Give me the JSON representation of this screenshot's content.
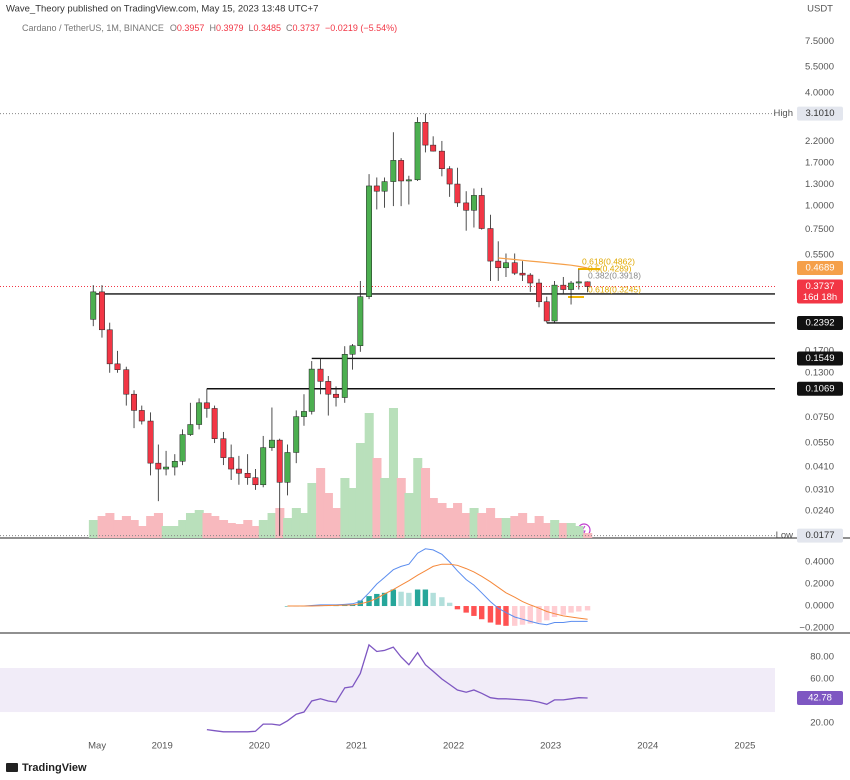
{
  "header": {
    "publisher": "Wave_Theory published on TradingView.com, May 15, 2023 13:48 UTC+7",
    "unit": "USDT"
  },
  "footer": {
    "brand": "TradingView"
  },
  "chart_data": [
    {
      "type": "candlestick",
      "title": "Cardano / TetherUS, 1M, BINANCE",
      "ohlc_labels": [
        "O",
        "H",
        "L",
        "C"
      ],
      "change": "−0.0219 (−5.54%)",
      "log_scale": true,
      "ylim": [
        0.0172,
        10
      ],
      "xlim": [
        2017.33,
        2025.31
      ],
      "yticks": [
        {
          "value": 7.5,
          "label": "7.5000"
        },
        {
          "value": 5.5,
          "label": "5.5000"
        },
        {
          "value": 4,
          "label": "4.0000"
        },
        {
          "value": 2.2,
          "label": "2.2000"
        },
        {
          "value": 1.7,
          "label": "1.7000"
        },
        {
          "value": 1.3,
          "label": "1.3000"
        },
        {
          "value": 1,
          "label": "1.0000"
        },
        {
          "value": 0.75,
          "label": "0.7500"
        },
        {
          "value": 0.55,
          "label": "0.5500"
        },
        {
          "value": 0.17,
          "label": "0.1700"
        },
        {
          "value": 0.13,
          "label": "0.1300"
        },
        {
          "value": 0.075,
          "label": "0.0750"
        },
        {
          "value": 0.055,
          "label": "0.0550"
        },
        {
          "value": 0.041,
          "label": "0.0410"
        },
        {
          "value": 0.031,
          "label": "0.0310"
        },
        {
          "value": 0.024,
          "label": "0.0240"
        }
      ],
      "xticks": [
        {
          "value": 2018.33,
          "label": "May"
        },
        2019,
        2020,
        2021,
        2022,
        2023,
        2024,
        2025
      ],
      "up_color": "#4caf50",
      "down_color": "#f23645",
      "x": [
        2018.29,
        2018.38,
        2018.46,
        2018.54,
        2018.63,
        2018.71,
        2018.79,
        2018.88,
        2018.96,
        2019.04,
        2019.13,
        2019.21,
        2019.29,
        2019.38,
        2019.46,
        2019.54,
        2019.63,
        2019.71,
        2019.79,
        2019.88,
        2019.96,
        2020.04,
        2020.13,
        2020.21,
        2020.29,
        2020.38,
        2020.46,
        2020.54,
        2020.63,
        2020.71,
        2020.79,
        2020.88,
        2020.96,
        2021.04,
        2021.13,
        2021.21,
        2021.29,
        2021.38,
        2021.46,
        2021.54,
        2021.63,
        2021.71,
        2021.79,
        2021.88,
        2021.96,
        2022.04,
        2022.13,
        2022.21,
        2022.29,
        2022.38,
        2022.46,
        2022.54,
        2022.63,
        2022.71,
        2022.79,
        2022.88,
        2022.96,
        2023.04,
        2023.13,
        2023.21,
        2023.29,
        2023.38
      ],
      "open": [
        0.25,
        0.35,
        0.22,
        0.145,
        0.135,
        0.1,
        0.082,
        0.072,
        0.043,
        0.04,
        0.041,
        0.044,
        0.061,
        0.069,
        0.09,
        0.084,
        0.058,
        0.046,
        0.04,
        0.038,
        0.036,
        0.033,
        0.052,
        0.057,
        0.034,
        0.049,
        0.076,
        0.081,
        0.136,
        0.117,
        0.1,
        0.096,
        0.163,
        0.181,
        0.33,
        1.28,
        1.2,
        1.35,
        1.75,
        1.36,
        1.38,
        2.79,
        2.11,
        1.96,
        1.58,
        1.31,
        1.04,
        0.95,
        1.14,
        0.76,
        0.51,
        0.47,
        0.5,
        0.44,
        0.43,
        0.39,
        0.31,
        0.245,
        0.38,
        0.36,
        0.39,
        0.3957
      ],
      "high": [
        0.38,
        0.38,
        0.24,
        0.17,
        0.14,
        0.105,
        0.087,
        0.08,
        0.054,
        0.05,
        0.048,
        0.065,
        0.09,
        0.095,
        0.107,
        0.087,
        0.063,
        0.054,
        0.047,
        0.048,
        0.04,
        0.06,
        0.085,
        0.058,
        0.054,
        0.082,
        0.1,
        0.15,
        0.155,
        0.125,
        0.11,
        0.18,
        0.185,
        0.4,
        1.48,
        1.42,
        1.42,
        2.47,
        1.8,
        1.45,
        2.97,
        3.101,
        2.35,
        2.22,
        1.63,
        1.6,
        1.2,
        1.24,
        1.25,
        0.9,
        0.65,
        0.56,
        0.56,
        0.51,
        0.44,
        0.41,
        0.33,
        0.4,
        0.42,
        0.4,
        0.46,
        0.3979
      ],
      "low": [
        0.23,
        0.2,
        0.13,
        0.13,
        0.087,
        0.066,
        0.069,
        0.037,
        0.027,
        0.037,
        0.037,
        0.042,
        0.06,
        0.065,
        0.075,
        0.055,
        0.042,
        0.035,
        0.033,
        0.033,
        0.031,
        0.032,
        0.05,
        0.0177,
        0.029,
        0.043,
        0.068,
        0.078,
        0.1,
        0.077,
        0.086,
        0.09,
        0.135,
        0.168,
        0.32,
        0.96,
        0.98,
        1.0,
        1.0,
        1.02,
        1.36,
        1.93,
        1.95,
        1.44,
        1.12,
        0.99,
        0.74,
        0.77,
        0.75,
        0.4,
        0.4,
        0.42,
        0.43,
        0.4,
        0.35,
        0.29,
        0.24,
        0.24,
        0.34,
        0.3,
        0.36,
        0.3485
      ],
      "close": [
        0.35,
        0.22,
        0.145,
        0.135,
        0.1,
        0.082,
        0.072,
        0.043,
        0.04,
        0.041,
        0.044,
        0.061,
        0.069,
        0.09,
        0.084,
        0.058,
        0.046,
        0.04,
        0.038,
        0.036,
        0.033,
        0.052,
        0.057,
        0.034,
        0.049,
        0.076,
        0.081,
        0.136,
        0.117,
        0.1,
        0.096,
        0.163,
        0.181,
        0.33,
        1.28,
        1.2,
        1.35,
        1.75,
        1.36,
        1.38,
        2.79,
        2.11,
        1.96,
        1.58,
        1.31,
        1.04,
        0.95,
        1.14,
        0.76,
        0.51,
        0.47,
        0.5,
        0.44,
        0.43,
        0.39,
        0.31,
        0.245,
        0.38,
        0.36,
        0.39,
        0.3957,
        0.3737
      ],
      "volume": {
        "ylim": [
          0,
          140
        ],
        "up_color": "#b9e0bb",
        "down_color": "#f8b9be",
        "values": [
          18,
          22,
          25,
          18,
          22,
          18,
          12,
          22,
          25,
          12,
          12,
          18,
          25,
          28,
          25,
          22,
          18,
          15,
          14,
          18,
          12,
          18,
          25,
          30,
          20,
          30,
          25,
          55,
          70,
          45,
          30,
          60,
          50,
          95,
          125,
          80,
          60,
          130,
          60,
          45,
          80,
          70,
          40,
          35,
          30,
          35,
          25,
          30,
          25,
          30,
          20,
          20,
          22,
          25,
          15,
          22,
          15,
          18,
          15,
          15,
          12,
          5
        ]
      },
      "levels": [
        {
          "value": 0.3414,
          "from": 2018.29
        },
        {
          "value": 0.2392,
          "from": 2022.96
        },
        {
          "value": 0.1549,
          "from": 2020.54
        },
        {
          "value": 0.1069,
          "from": 2019.46
        }
      ],
      "high_mark": {
        "label": "High",
        "price": {
          "value": 3.101,
          "label": "3.1010"
        }
      },
      "low_mark": {
        "label": "Low",
        "price": 0.0177
      },
      "countdown": "16d 18h",
      "ema": {
        "color": "#f5a04a",
        "x": [
          2022.46,
          2022.54,
          2022.63,
          2022.71,
          2022.79,
          2022.88,
          2022.96,
          2023.04,
          2023.13,
          2023.21,
          2023.29,
          2023.38
        ],
        "values": [
          0.53,
          0.525,
          0.52,
          0.515,
          0.51,
          0.505,
          0.5,
          0.495,
          0.49,
          0.485,
          0.478,
          0.4689
        ]
      },
      "fib_labels": [
        "0.618(0.4862)",
        "0.5(0.4289)",
        "0.382(0.3918)",
        "0.618(0.3245)"
      ]
    },
    {
      "type": "macd",
      "ylim": [
        -0.236,
        0.6
      ],
      "yticks": [
        {
          "value": 0.4,
          "label": "0.4000"
        },
        {
          "value": 0.2,
          "label": "0.2000"
        },
        {
          "value": 0,
          "label": "0.0000"
        },
        {
          "value": -0.2,
          "label": "−0.2000"
        }
      ],
      "x": [
        2020.29,
        2020.38,
        2020.46,
        2020.54,
        2020.63,
        2020.71,
        2020.79,
        2020.88,
        2020.96,
        2021.04,
        2021.13,
        2021.21,
        2021.29,
        2021.38,
        2021.46,
        2021.54,
        2021.63,
        2021.71,
        2021.79,
        2021.88,
        2021.96,
        2022.04,
        2022.13,
        2022.21,
        2022.29,
        2022.38,
        2022.46,
        2022.54,
        2022.63,
        2022.71,
        2022.79,
        2022.88,
        2022.96,
        2023.04,
        2023.13,
        2023.21,
        2023.29,
        2023.38
      ],
      "macd": {
        "color": "#5b8def",
        "values": [
          0,
          0,
          0,
          0.005,
          0.01,
          0.01,
          0.01,
          0.015,
          0.02,
          0.04,
          0.12,
          0.2,
          0.26,
          0.33,
          0.36,
          0.38,
          0.48,
          0.52,
          0.51,
          0.47,
          0.4,
          0.32,
          0.24,
          0.19,
          0.12,
          0.04,
          -0.02,
          -0.06,
          -0.1,
          -0.12,
          -0.14,
          -0.16,
          -0.17,
          -0.15,
          -0.15,
          -0.14,
          -0.14,
          -0.14
        ]
      },
      "signal": {
        "color": "#f5883a",
        "values": [
          0,
          0,
          0,
          0,
          0.003,
          0.005,
          0.006,
          0.008,
          0.01,
          0.02,
          0.04,
          0.07,
          0.11,
          0.15,
          0.19,
          0.23,
          0.28,
          0.32,
          0.36,
          0.38,
          0.38,
          0.37,
          0.34,
          0.31,
          0.27,
          0.22,
          0.17,
          0.12,
          0.08,
          0.04,
          0.01,
          -0.02,
          -0.05,
          -0.07,
          -0.09,
          -0.1,
          -0.11,
          -0.12
        ]
      },
      "histogram": {
        "colors": [
          "#26a69a",
          "#b2dfdb",
          "#ff5252",
          "#ffcdd2"
        ],
        "values": [
          0,
          0,
          0,
          0.005,
          0.005,
          0.004,
          0.004,
          0.006,
          0.01,
          0.05,
          0.09,
          0.11,
          0.12,
          0.15,
          0.13,
          0.12,
          0.15,
          0.15,
          0.12,
          0.08,
          0.03,
          -0.03,
          -0.06,
          -0.09,
          -0.12,
          -0.15,
          -0.17,
          -0.18,
          -0.18,
          -0.17,
          -0.16,
          -0.15,
          -0.13,
          -0.1,
          -0.08,
          -0.06,
          -0.05,
          -0.04
        ]
      }
    },
    {
      "type": "rsi",
      "ylim": [
        6.4,
        100.9
      ],
      "color": "#7e57c2",
      "band": [
        30,
        70
      ],
      "band_color": "#ede7f6",
      "yticks": [
        {
          "value": 80,
          "label": "80.00"
        },
        {
          "value": 60,
          "label": "60.00"
        },
        {
          "value": 20,
          "label": "20.00"
        }
      ],
      "x": [
        2019.46,
        2019.54,
        2019.63,
        2019.71,
        2019.79,
        2019.88,
        2019.96,
        2020.04,
        2020.13,
        2020.21,
        2020.29,
        2020.38,
        2020.46,
        2020.54,
        2020.63,
        2020.71,
        2020.79,
        2020.88,
        2020.96,
        2021.04,
        2021.13,
        2021.21,
        2021.29,
        2021.38,
        2021.46,
        2021.54,
        2021.63,
        2021.71,
        2021.79,
        2021.88,
        2021.96,
        2022.04,
        2022.13,
        2022.21,
        2022.29,
        2022.38,
        2022.46,
        2022.54,
        2022.63,
        2022.71,
        2022.79,
        2022.88,
        2022.96,
        2023.04,
        2023.13,
        2023.21,
        2023.29,
        2023.38
      ],
      "values": [
        14,
        13,
        12,
        12,
        12,
        12,
        12.5,
        19,
        19,
        18,
        22,
        28,
        30,
        40,
        42,
        40,
        39,
        52,
        53,
        65,
        91,
        85,
        86,
        89,
        80,
        73,
        84,
        73,
        67,
        60,
        55,
        50,
        48,
        50,
        47,
        43,
        42,
        42,
        41.5,
        41,
        40.5,
        39,
        37,
        41,
        41,
        42,
        43,
        42.78
      ]
    }
  ]
}
